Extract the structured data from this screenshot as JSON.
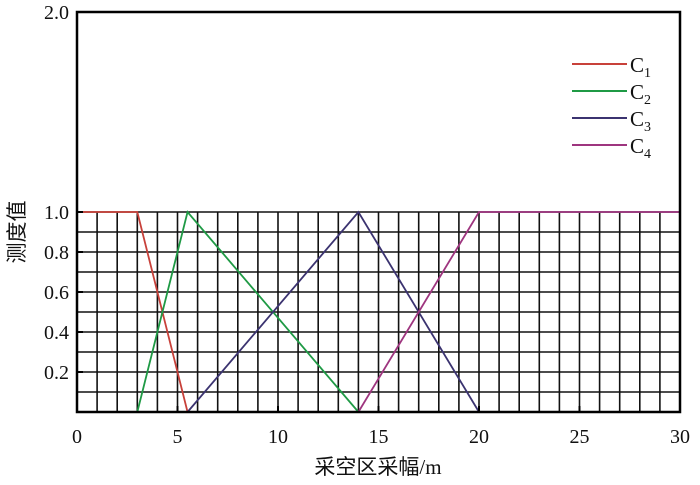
{
  "chart_data": {
    "type": "line",
    "xlabel": "采空区采幅/m",
    "ylabel": "测度值",
    "xlim": [
      0,
      30
    ],
    "ylim": [
      0,
      2.0
    ],
    "xticks": [
      0,
      5,
      10,
      15,
      20,
      25,
      30
    ],
    "xtick_labels": [
      "0",
      "5",
      "10",
      "15",
      "20",
      "25",
      "30"
    ],
    "yticks": [
      0.2,
      0.4,
      0.6,
      0.8,
      1.0,
      2.0
    ],
    "ytick_labels": [
      "0.2",
      "0.4",
      "0.6",
      "0.8",
      "1.0",
      "2.0"
    ],
    "grid": {
      "on": true,
      "x_step": 1,
      "y_step": 0.1,
      "y_range": [
        0,
        1.0
      ]
    },
    "legend": {
      "placement": "top-right"
    },
    "series": [
      {
        "name": "C1",
        "color": "#c8413a",
        "points": [
          [
            0,
            1
          ],
          [
            3,
            1
          ],
          [
            5.5,
            0
          ]
        ]
      },
      {
        "name": "C2",
        "color": "#1f9a45",
        "points": [
          [
            3,
            0
          ],
          [
            5.5,
            1
          ],
          [
            14,
            0
          ]
        ]
      },
      {
        "name": "C3",
        "color": "#3b3370",
        "points": [
          [
            5.5,
            0
          ],
          [
            14,
            1
          ],
          [
            20,
            0
          ]
        ]
      },
      {
        "name": "C4",
        "color": "#9e357f",
        "points": [
          [
            14,
            0
          ],
          [
            20,
            1
          ],
          [
            30,
            1
          ]
        ]
      }
    ]
  }
}
